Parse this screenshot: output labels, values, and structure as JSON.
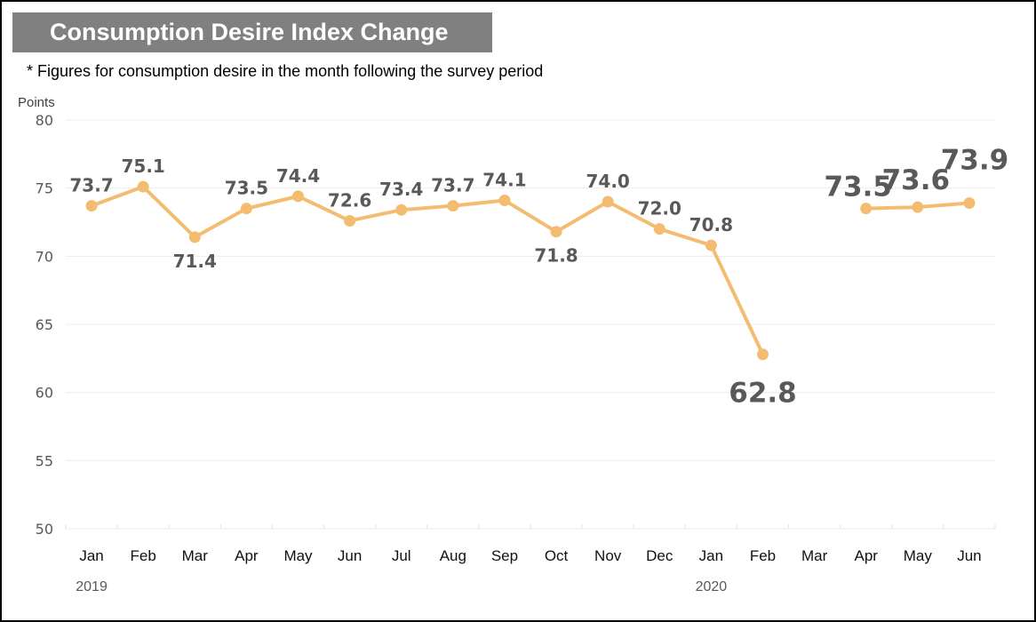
{
  "chart_data": {
    "type": "line",
    "title": "Consumption Desire Index Change",
    "subtitle": "* Figures for consumption desire in the month following the survey period",
    "ylabel": "Points",
    "xlabel": "",
    "ylim": [
      50,
      80
    ],
    "yticks": [
      80,
      75,
      70,
      65,
      60,
      55,
      50
    ],
    "grid": true,
    "categories": [
      "Jan",
      "Feb",
      "Mar",
      "Apr",
      "May",
      "Jun",
      "Jul",
      "Aug",
      "Sep",
      "Oct",
      "Nov",
      "Dec",
      "Jan",
      "Feb",
      "Mar",
      "Apr",
      "May",
      "Jun"
    ],
    "year_labels": [
      {
        "label": "2019",
        "category_index": 0
      },
      {
        "label": "2020",
        "category_index": 12
      }
    ],
    "series": [
      {
        "name": "Consumption Desire Index",
        "color": "#F4BC70",
        "values": [
          73.7,
          75.1,
          71.4,
          73.5,
          74.4,
          72.6,
          73.4,
          73.7,
          74.1,
          71.8,
          74.0,
          72.0,
          70.8,
          62.8,
          null,
          73.5,
          73.6,
          73.9
        ],
        "labels": [
          "73.7",
          "75.1",
          "71.4",
          "73.5",
          "74.4",
          "72.6",
          "73.4",
          "73.7",
          "74.1",
          "71.8",
          "74.0",
          "72.0",
          "70.8",
          "62.8",
          "",
          "73.5",
          "73.6",
          "73.9"
        ],
        "label_position": [
          "above",
          "above",
          "below",
          "above",
          "above",
          "above",
          "above",
          "above",
          "above",
          "below",
          "above",
          "above",
          "above",
          "below",
          "",
          "above",
          "above",
          "above"
        ],
        "label_emphasis": [
          false,
          false,
          false,
          false,
          false,
          false,
          false,
          false,
          false,
          false,
          false,
          false,
          false,
          true,
          false,
          true,
          true,
          true
        ]
      }
    ],
    "legend": "none"
  },
  "colors": {
    "title_background": "#808080",
    "title_text": "#ffffff",
    "line": "#F4BC70",
    "data_label": "#595959",
    "grid": "#ececec"
  }
}
